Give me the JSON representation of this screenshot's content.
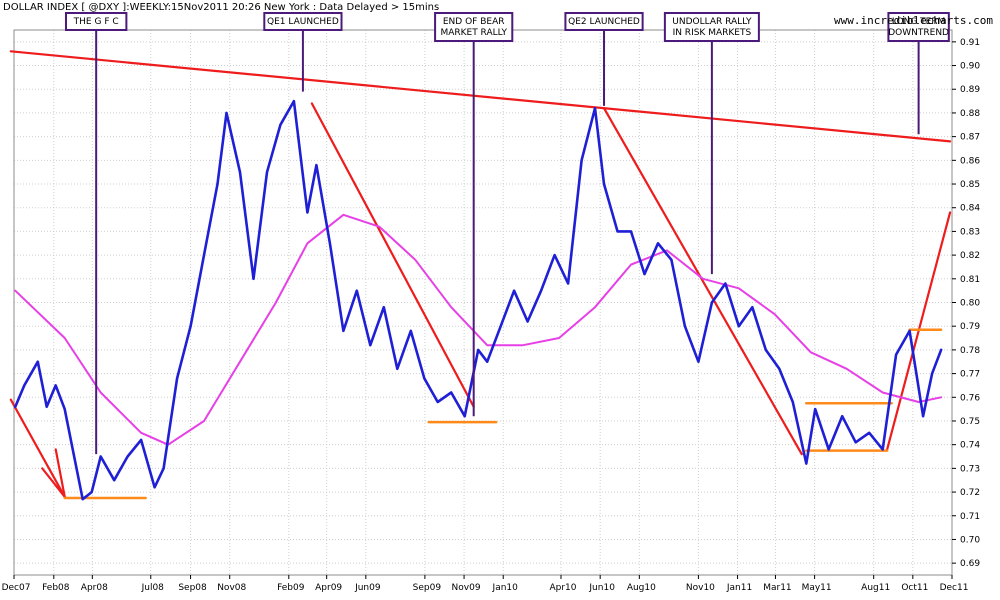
{
  "header": {
    "title": "DOLLAR INDEX [ @DXY ]:WEEKLY:15Nov2011 20:26 New York  : Data Delayed > 15mins",
    "watermark": "www.incrediblecharts.com"
  },
  "colors": {
    "price": "#1f1fd6",
    "moving_average": "#e640e6",
    "trendline": "#ee1c1c",
    "support": "#ff8a1a",
    "annotation_border": "#4b1a7a",
    "grid": "#cfcfcf"
  },
  "chart_data": {
    "type": "line",
    "title": "DOLLAR INDEX [ @DXY ]:WEEKLY:15Nov2011 20:26 New York  : Data Delayed > 15mins",
    "xlabel": "",
    "ylabel": "",
    "x_range": [
      "2007-12",
      "2011-12"
    ],
    "ylim": [
      0.685,
      0.915
    ],
    "grid": true,
    "y_ticks": [
      "0.91",
      "0.90",
      "0.89",
      "0.88",
      "0.87",
      "0.86",
      "0.85",
      "0.84",
      "0.83",
      "0.82",
      "0.81",
      "0.80",
      "0.79",
      "0.78",
      "0.77",
      "0.76",
      "0.75",
      "0.74",
      "0.73",
      "0.72",
      "0.71",
      "0.70",
      "0.69"
    ],
    "x_tick_labels": [
      "Dec07",
      "Feb08",
      "Apr08",
      "Jul08",
      "Sep08",
      "Nov08",
      "Feb09",
      "Apr09",
      "Jun09",
      "Sep09",
      "Nov09",
      "Jan10",
      "Apr10",
      "Jun10",
      "Aug10",
      "Nov10",
      "Jan11",
      "Mar11",
      "May11",
      "Aug11",
      "Oct11",
      "Dec11"
    ],
    "series": [
      {
        "name": "",
        "style": "price",
        "x": [
          "2007-12-03",
          "2007-12-17",
          "2008-01-07",
          "2008-01-21",
          "2008-02-04",
          "2008-02-18",
          "2008-03-03",
          "2008-03-17",
          "2008-03-31",
          "2008-04-14",
          "2008-05-05",
          "2008-05-26",
          "2008-06-16",
          "2008-07-07",
          "2008-07-21",
          "2008-08-11",
          "2008-09-01",
          "2008-09-22",
          "2008-10-13",
          "2008-10-27",
          "2008-11-17",
          "2008-12-08",
          "2008-12-29",
          "2009-01-19",
          "2009-02-09",
          "2009-03-02",
          "2009-03-16",
          "2009-04-06",
          "2009-04-27",
          "2009-05-18",
          "2009-06-08",
          "2009-06-29",
          "2009-07-20",
          "2009-08-10",
          "2009-08-31",
          "2009-09-21",
          "2009-10-12",
          "2009-11-02",
          "2009-11-23",
          "2009-12-07",
          "2009-12-28",
          "2010-01-18",
          "2010-02-08",
          "2010-03-01",
          "2010-03-22",
          "2010-04-12",
          "2010-05-03",
          "2010-05-24",
          "2010-06-07",
          "2010-06-28",
          "2010-07-19",
          "2010-08-09",
          "2010-08-30",
          "2010-09-20",
          "2010-10-11",
          "2010-11-01",
          "2010-11-22",
          "2010-12-13",
          "2011-01-03",
          "2011-01-24",
          "2011-02-14",
          "2011-03-07",
          "2011-03-28",
          "2011-04-18",
          "2011-05-02",
          "2011-05-23",
          "2011-06-13",
          "2011-07-04",
          "2011-07-25",
          "2011-08-15",
          "2011-09-05",
          "2011-09-26",
          "2011-10-17",
          "2011-10-31",
          "2011-11-14"
        ],
        "values": [
          0.756,
          0.765,
          0.775,
          0.756,
          0.765,
          0.755,
          0.736,
          0.717,
          0.72,
          0.735,
          0.725,
          0.735,
          0.742,
          0.722,
          0.73,
          0.768,
          0.79,
          0.82,
          0.85,
          0.88,
          0.855,
          0.81,
          0.855,
          0.875,
          0.885,
          0.838,
          0.858,
          0.825,
          0.788,
          0.805,
          0.782,
          0.798,
          0.772,
          0.788,
          0.768,
          0.758,
          0.762,
          0.752,
          0.78,
          0.775,
          0.79,
          0.805,
          0.792,
          0.805,
          0.82,
          0.808,
          0.86,
          0.882,
          0.85,
          0.83,
          0.83,
          0.812,
          0.825,
          0.818,
          0.79,
          0.775,
          0.8,
          0.808,
          0.79,
          0.798,
          0.78,
          0.772,
          0.758,
          0.732,
          0.755,
          0.738,
          0.752,
          0.741,
          0.745,
          0.738,
          0.778,
          0.788,
          0.752,
          0.77,
          0.78
        ]
      },
      {
        "name": "",
        "style": "moving_average",
        "x": [
          "2007-12-03",
          "2008-02-18",
          "2008-04-14",
          "2008-06-16",
          "2008-07-28",
          "2008-09-22",
          "2008-11-17",
          "2009-01-12",
          "2009-03-02",
          "2009-04-27",
          "2009-06-22",
          "2009-08-17",
          "2009-10-12",
          "2009-12-07",
          "2010-02-01",
          "2010-03-29",
          "2010-05-24",
          "2010-07-19",
          "2010-09-13",
          "2010-11-08",
          "2011-01-03",
          "2011-02-28",
          "2011-04-25",
          "2011-06-20",
          "2011-08-15",
          "2011-10-10",
          "2011-11-14"
        ],
        "values": [
          0.805,
          0.785,
          0.762,
          0.745,
          0.74,
          0.75,
          0.775,
          0.8,
          0.825,
          0.837,
          0.832,
          0.818,
          0.798,
          0.782,
          0.782,
          0.785,
          0.798,
          0.816,
          0.822,
          0.81,
          0.806,
          0.795,
          0.779,
          0.772,
          0.762,
          0.758,
          0.76
        ]
      }
    ],
    "trendlines": [
      {
        "style": "trendline",
        "from": {
          "x": "2007-11-26",
          "y": 0.906
        },
        "to": {
          "x": "2011-11-28",
          "y": 0.868
        }
      },
      {
        "style": "trendline",
        "from": {
          "x": "2007-11-26",
          "y": 0.759
        },
        "to": {
          "x": "2008-02-18",
          "y": 0.718
        }
      },
      {
        "style": "trendline",
        "from": {
          "x": "2008-01-14",
          "y": 0.73
        },
        "to": {
          "x": "2008-02-18",
          "y": 0.718
        }
      },
      {
        "style": "trendline",
        "from": {
          "x": "2008-02-04",
          "y": 0.738
        },
        "to": {
          "x": "2008-02-18",
          "y": 0.718
        }
      },
      {
        "style": "trendline",
        "from": {
          "x": "2009-03-09",
          "y": 0.884
        },
        "to": {
          "x": "2009-11-16",
          "y": 0.756
        }
      },
      {
        "style": "trendline",
        "from": {
          "x": "2010-06-07",
          "y": 0.882
        },
        "to": {
          "x": "2011-04-11",
          "y": 0.736
        }
      },
      {
        "style": "trendline",
        "from": {
          "x": "2011-08-22",
          "y": 0.738
        },
        "to": {
          "x": "2011-11-28",
          "y": 0.838
        }
      },
      {
        "style": "support",
        "from": {
          "x": "2008-02-18",
          "y": 0.7175
        },
        "to": {
          "x": "2008-06-23",
          "y": 0.7175
        }
      },
      {
        "style": "support",
        "from": {
          "x": "2009-09-07",
          "y": 0.7495
        },
        "to": {
          "x": "2009-12-21",
          "y": 0.7495
        }
      },
      {
        "style": "support",
        "from": {
          "x": "2011-04-18",
          "y": 0.7575
        },
        "to": {
          "x": "2011-08-29",
          "y": 0.7575
        }
      },
      {
        "style": "support",
        "from": {
          "x": "2011-04-18",
          "y": 0.7375
        },
        "to": {
          "x": "2011-08-22",
          "y": 0.7375
        }
      },
      {
        "style": "support",
        "from": {
          "x": "2011-09-26",
          "y": 0.7885
        },
        "to": {
          "x": "2011-11-14",
          "y": 0.7885
        }
      }
    ],
    "annotations": [
      {
        "text": "THE G F C",
        "lines": [
          "THE G F C"
        ],
        "x": "2008-04-07",
        "y_end": 0.736
      },
      {
        "text": "QE1 LAUNCHED",
        "lines": [
          "QE1 LAUNCHED"
        ],
        "x": "2009-02-23",
        "y_end": 0.889
      },
      {
        "text": "END OF BEAR MARKET RALLY",
        "lines": [
          "END OF BEAR",
          "MARKET RALLY"
        ],
        "x": "2009-11-16",
        "y_end": 0.752
      },
      {
        "text": "QE2 LAUNCHED",
        "lines": [
          "QE2 LAUNCHED"
        ],
        "x": "2010-06-07",
        "y_end": 0.883
      },
      {
        "text": "UNDOLLAR RALLY IN RISK MARKETS",
        "lines": [
          "UNDOLLAR RALLY",
          "IN RISK MARKETS"
        ],
        "x": "2010-11-22",
        "y_end": 0.812
      },
      {
        "text": "LONG TERM DOWNTREND",
        "lines": [
          "LONG TERM",
          "DOWNTREND"
        ],
        "x": "2011-10-10",
        "y_end": 0.871
      }
    ]
  }
}
